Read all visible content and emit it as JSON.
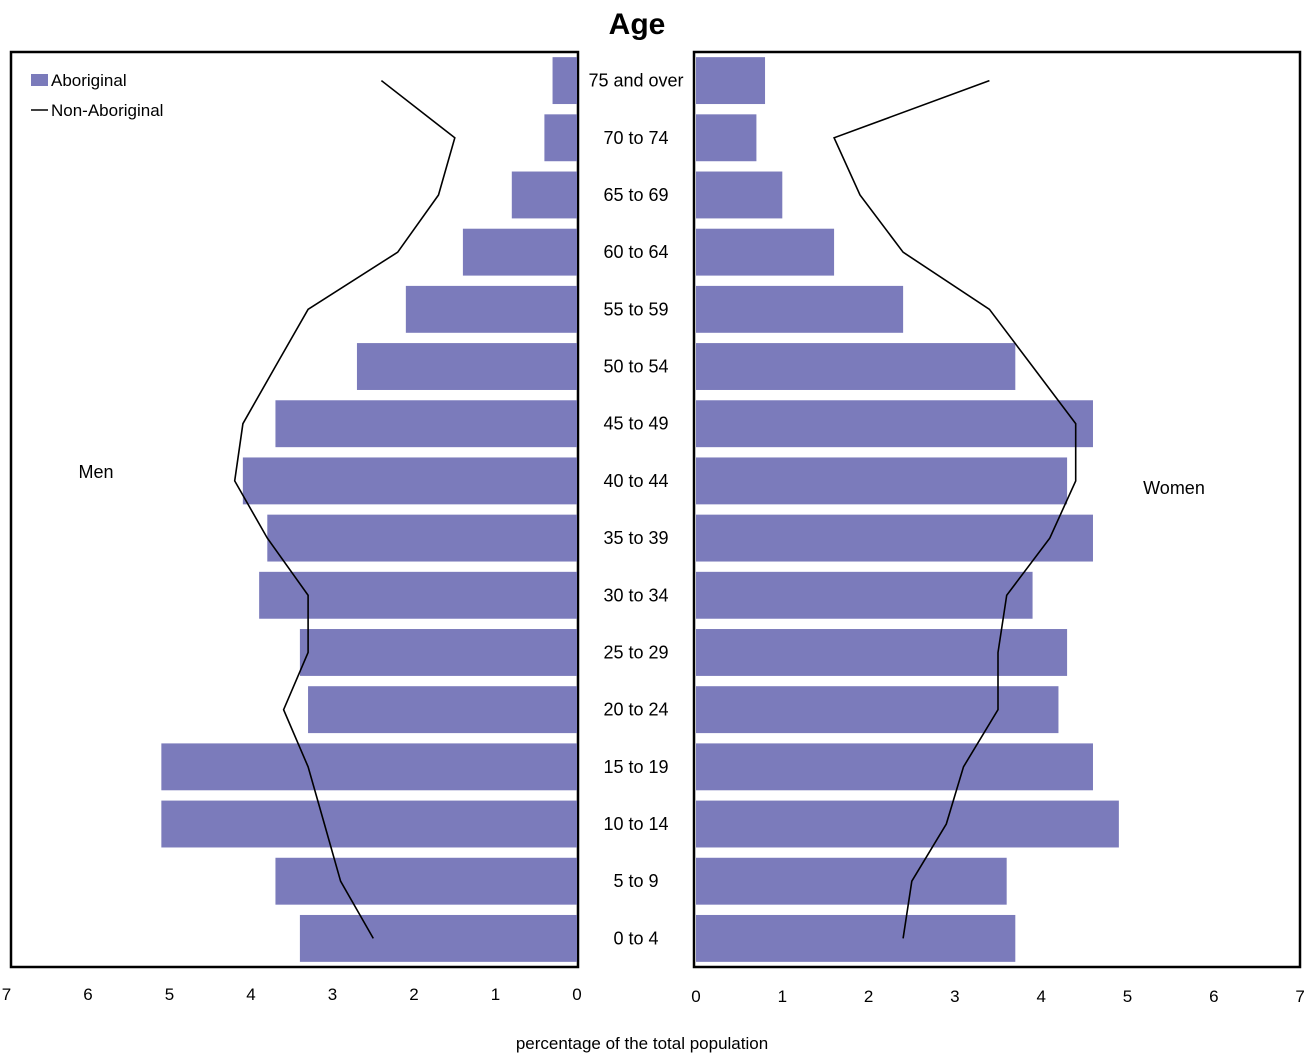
{
  "chart_data": {
    "type": "bar",
    "orientation": "horizontal-population-pyramid",
    "title": "Age",
    "xlabel": "percentage of the total population",
    "categories": [
      "75 and over",
      "70 to 74",
      "65 to 69",
      "60 to 64",
      "55 to 59",
      "50 to 54",
      "45 to 49",
      "40 to 44",
      "35 to 39",
      "30 to 34",
      "25 to 29",
      "20 to 24",
      "15 to 19",
      "10 to 14",
      "5 to 9",
      "0 to 4"
    ],
    "panels": [
      {
        "label": "Men",
        "xlim": [
          7,
          0
        ],
        "ticks": [
          "7",
          "6",
          "5",
          "4",
          "3",
          "2",
          "1",
          "0"
        ],
        "series": [
          {
            "name": "Aboriginal",
            "type": "bar",
            "values": [
              0.3,
              0.4,
              0.8,
              1.4,
              2.1,
              2.7,
              3.7,
              4.1,
              3.8,
              3.9,
              3.4,
              3.3,
              5.1,
              5.1,
              3.7,
              3.4
            ]
          },
          {
            "name": "Non-Aboriginal",
            "type": "line",
            "values": [
              2.4,
              1.5,
              1.7,
              2.2,
              3.3,
              3.7,
              4.1,
              4.2,
              3.8,
              3.3,
              3.3,
              3.6,
              3.3,
              3.1,
              2.9,
              2.5
            ]
          }
        ]
      },
      {
        "label": "Women",
        "xlim": [
          0,
          7
        ],
        "ticks": [
          "0",
          "1",
          "2",
          "3",
          "4",
          "5",
          "6",
          "7"
        ],
        "series": [
          {
            "name": "Aboriginal",
            "type": "bar",
            "values": [
              0.8,
              0.7,
              1.0,
              1.6,
              2.4,
              3.7,
              4.6,
              4.3,
              4.6,
              3.9,
              4.3,
              4.2,
              4.6,
              4.9,
              3.6,
              3.7
            ]
          },
          {
            "name": "Non-Aboriginal",
            "type": "line",
            "values": [
              3.4,
              1.6,
              1.9,
              2.4,
              3.4,
              3.9,
              4.4,
              4.4,
              4.1,
              3.6,
              3.5,
              3.5,
              3.1,
              2.9,
              2.5,
              2.4
            ]
          }
        ]
      }
    ],
    "legend": {
      "placement": "top-left",
      "items": [
        "Aboriginal",
        "Non-Aboriginal"
      ]
    },
    "grid": false,
    "colors": {
      "bar": "#7b7bbb",
      "line": "#000000",
      "frame": "#000000"
    }
  }
}
